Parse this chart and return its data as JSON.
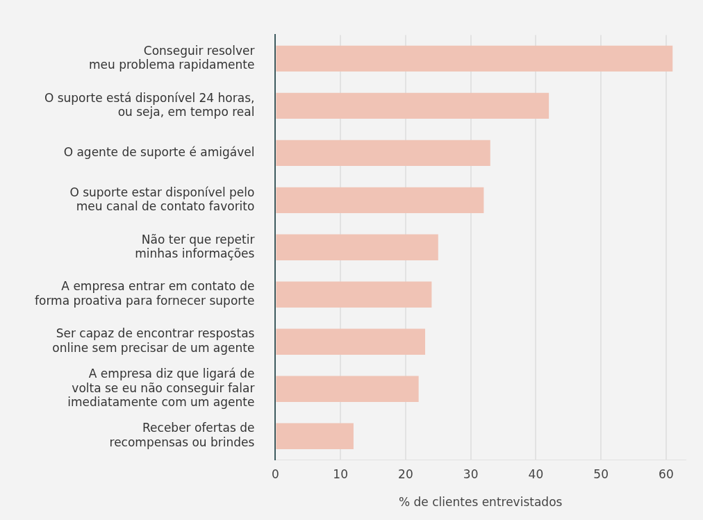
{
  "chart_data": {
    "type": "bar",
    "orientation": "horizontal",
    "categories": [
      "Conseguir resolver\nmeu problema rapidamente",
      "O suporte está disponível 24 horas,\nou seja, em tempo real",
      "O agente de suporte é amigável",
      "O suporte estar disponível pelo\nmeu canal de contato favorito",
      "Não ter que repetir\nminhas informações",
      "A empresa entrar em contato de\nforma proativa para fornecer suporte",
      "Ser capaz de encontrar respostas\nonline sem precisar de um agente",
      "A empresa diz que ligará de\nvolta se eu não conseguir falar\nimediatamente com um agente",
      "Receber ofertas de\nrecompensas ou brindes"
    ],
    "values": [
      61,
      42,
      33,
      32,
      25,
      24,
      23,
      22,
      12
    ],
    "color": "#f0c3b5",
    "xlabel": "% de clientes entrevistados",
    "xlim": [
      0,
      63
    ],
    "xticks": [
      0,
      10,
      20,
      30,
      40,
      50,
      60
    ],
    "grid": "x",
    "legend": false
  }
}
